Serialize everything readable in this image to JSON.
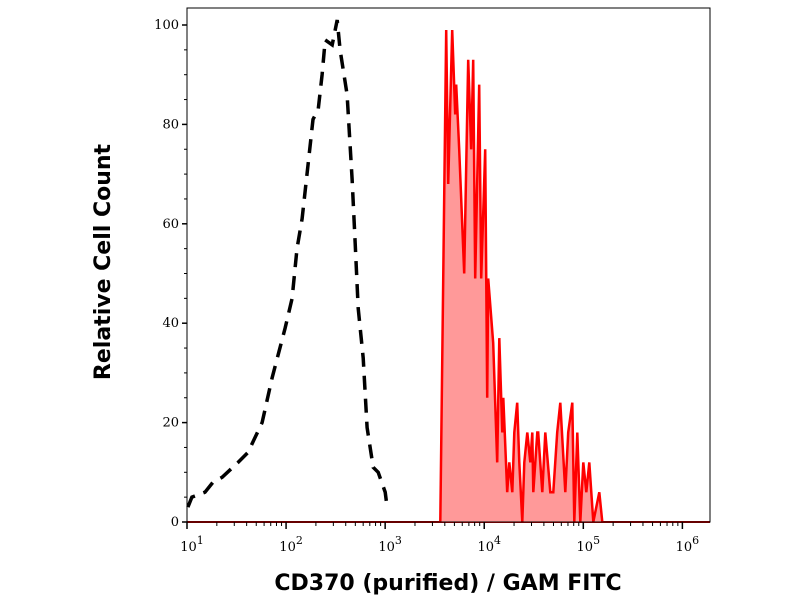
{
  "chart_data": {
    "type": "area",
    "title": "",
    "xlabel": "CD370 (purified) / GAM FITC",
    "ylabel": "Relative Cell Count",
    "x_scale": "log",
    "xlim": [
      10,
      1900000
    ],
    "ylim": [
      0,
      103
    ],
    "x_ticks": [
      {
        "value": 10,
        "base": "10",
        "exp": "1"
      },
      {
        "value": 100,
        "base": "10",
        "exp": "2"
      },
      {
        "value": 1000,
        "base": "10",
        "exp": "3"
      },
      {
        "value": 10000,
        "base": "10",
        "exp": "4"
      },
      {
        "value": 100000,
        "base": "10",
        "exp": "5"
      },
      {
        "value": 1000000,
        "base": "10",
        "exp": "6"
      }
    ],
    "y_ticks": [
      {
        "value": 0,
        "label": "0"
      },
      {
        "value": 20,
        "label": "20"
      },
      {
        "value": 40,
        "label": "40"
      },
      {
        "value": 60,
        "label": "60"
      },
      {
        "value": 80,
        "label": "80"
      },
      {
        "value": 100,
        "label": "100"
      }
    ],
    "grid": false,
    "series": [
      {
        "style": "dashed-line",
        "color": "#000000",
        "points": [
          [
            10.2,
            3
          ],
          [
            11.2,
            5
          ],
          [
            15.2,
            6
          ],
          [
            18.3,
            8
          ],
          [
            22.6,
            9
          ],
          [
            32.8,
            12
          ],
          [
            41.3,
            14
          ],
          [
            57.3,
            20
          ],
          [
            72.3,
            29
          ],
          [
            97.7,
            39
          ],
          [
            115,
            45
          ],
          [
            129,
            55
          ],
          [
            145,
            61
          ],
          [
            167,
            72
          ],
          [
            187,
            81
          ],
          [
            211,
            83
          ],
          [
            231,
            90
          ],
          [
            248,
            97
          ],
          [
            292,
            96
          ],
          [
            328,
            101
          ],
          [
            351,
            95
          ],
          [
            413,
            86
          ],
          [
            464,
            69
          ],
          [
            498,
            56
          ],
          [
            534,
            43
          ],
          [
            600,
            33
          ],
          [
            658,
            19
          ],
          [
            757,
            11
          ],
          [
            850,
            10
          ],
          [
            1000,
            6
          ],
          [
            1047,
            3
          ]
        ]
      },
      {
        "style": "filled-line",
        "color": "#ff0000",
        "fill": "#ff9999",
        "points": [
          [
            3600,
            0
          ],
          [
            4130,
            99
          ],
          [
            4330,
            68
          ],
          [
            4750,
            99
          ],
          [
            5090,
            82
          ],
          [
            5210,
            88
          ],
          [
            5590,
            75
          ],
          [
            6280,
            50
          ],
          [
            6890,
            93
          ],
          [
            7390,
            75
          ],
          [
            7740,
            93
          ],
          [
            8110,
            49
          ],
          [
            8900,
            88
          ],
          [
            9330,
            49
          ],
          [
            10240,
            75
          ],
          [
            10720,
            25
          ],
          [
            10970,
            49
          ],
          [
            12330,
            36
          ],
          [
            13520,
            12
          ],
          [
            14190,
            37
          ],
          [
            15210,
            18
          ],
          [
            15560,
            25
          ],
          [
            17070,
            6
          ],
          [
            17900,
            12
          ],
          [
            19190,
            6
          ],
          [
            20100,
            18
          ],
          [
            21540,
            24
          ],
          [
            22570,
            12
          ],
          [
            24210,
            0
          ],
          [
            25350,
            12
          ],
          [
            27180,
            18
          ],
          [
            29150,
            12
          ],
          [
            30530,
            18
          ],
          [
            31260,
            6
          ],
          [
            34290,
            18
          ],
          [
            35090,
            18
          ],
          [
            38540,
            6
          ],
          [
            41300,
            18
          ],
          [
            46420,
            6
          ],
          [
            49740,
            6
          ],
          [
            54550,
            18
          ],
          [
            58580,
            24
          ],
          [
            65760,
            6
          ],
          [
            70470,
            18
          ],
          [
            77450,
            24
          ],
          [
            81110,
            0
          ],
          [
            86950,
            18
          ],
          [
            93300,
            0
          ],
          [
            100000,
            12
          ],
          [
            107200,
            6
          ],
          [
            115000,
            12
          ],
          [
            126200,
            0
          ],
          [
            145100,
            6
          ],
          [
            155600,
            0
          ]
        ]
      }
    ]
  }
}
